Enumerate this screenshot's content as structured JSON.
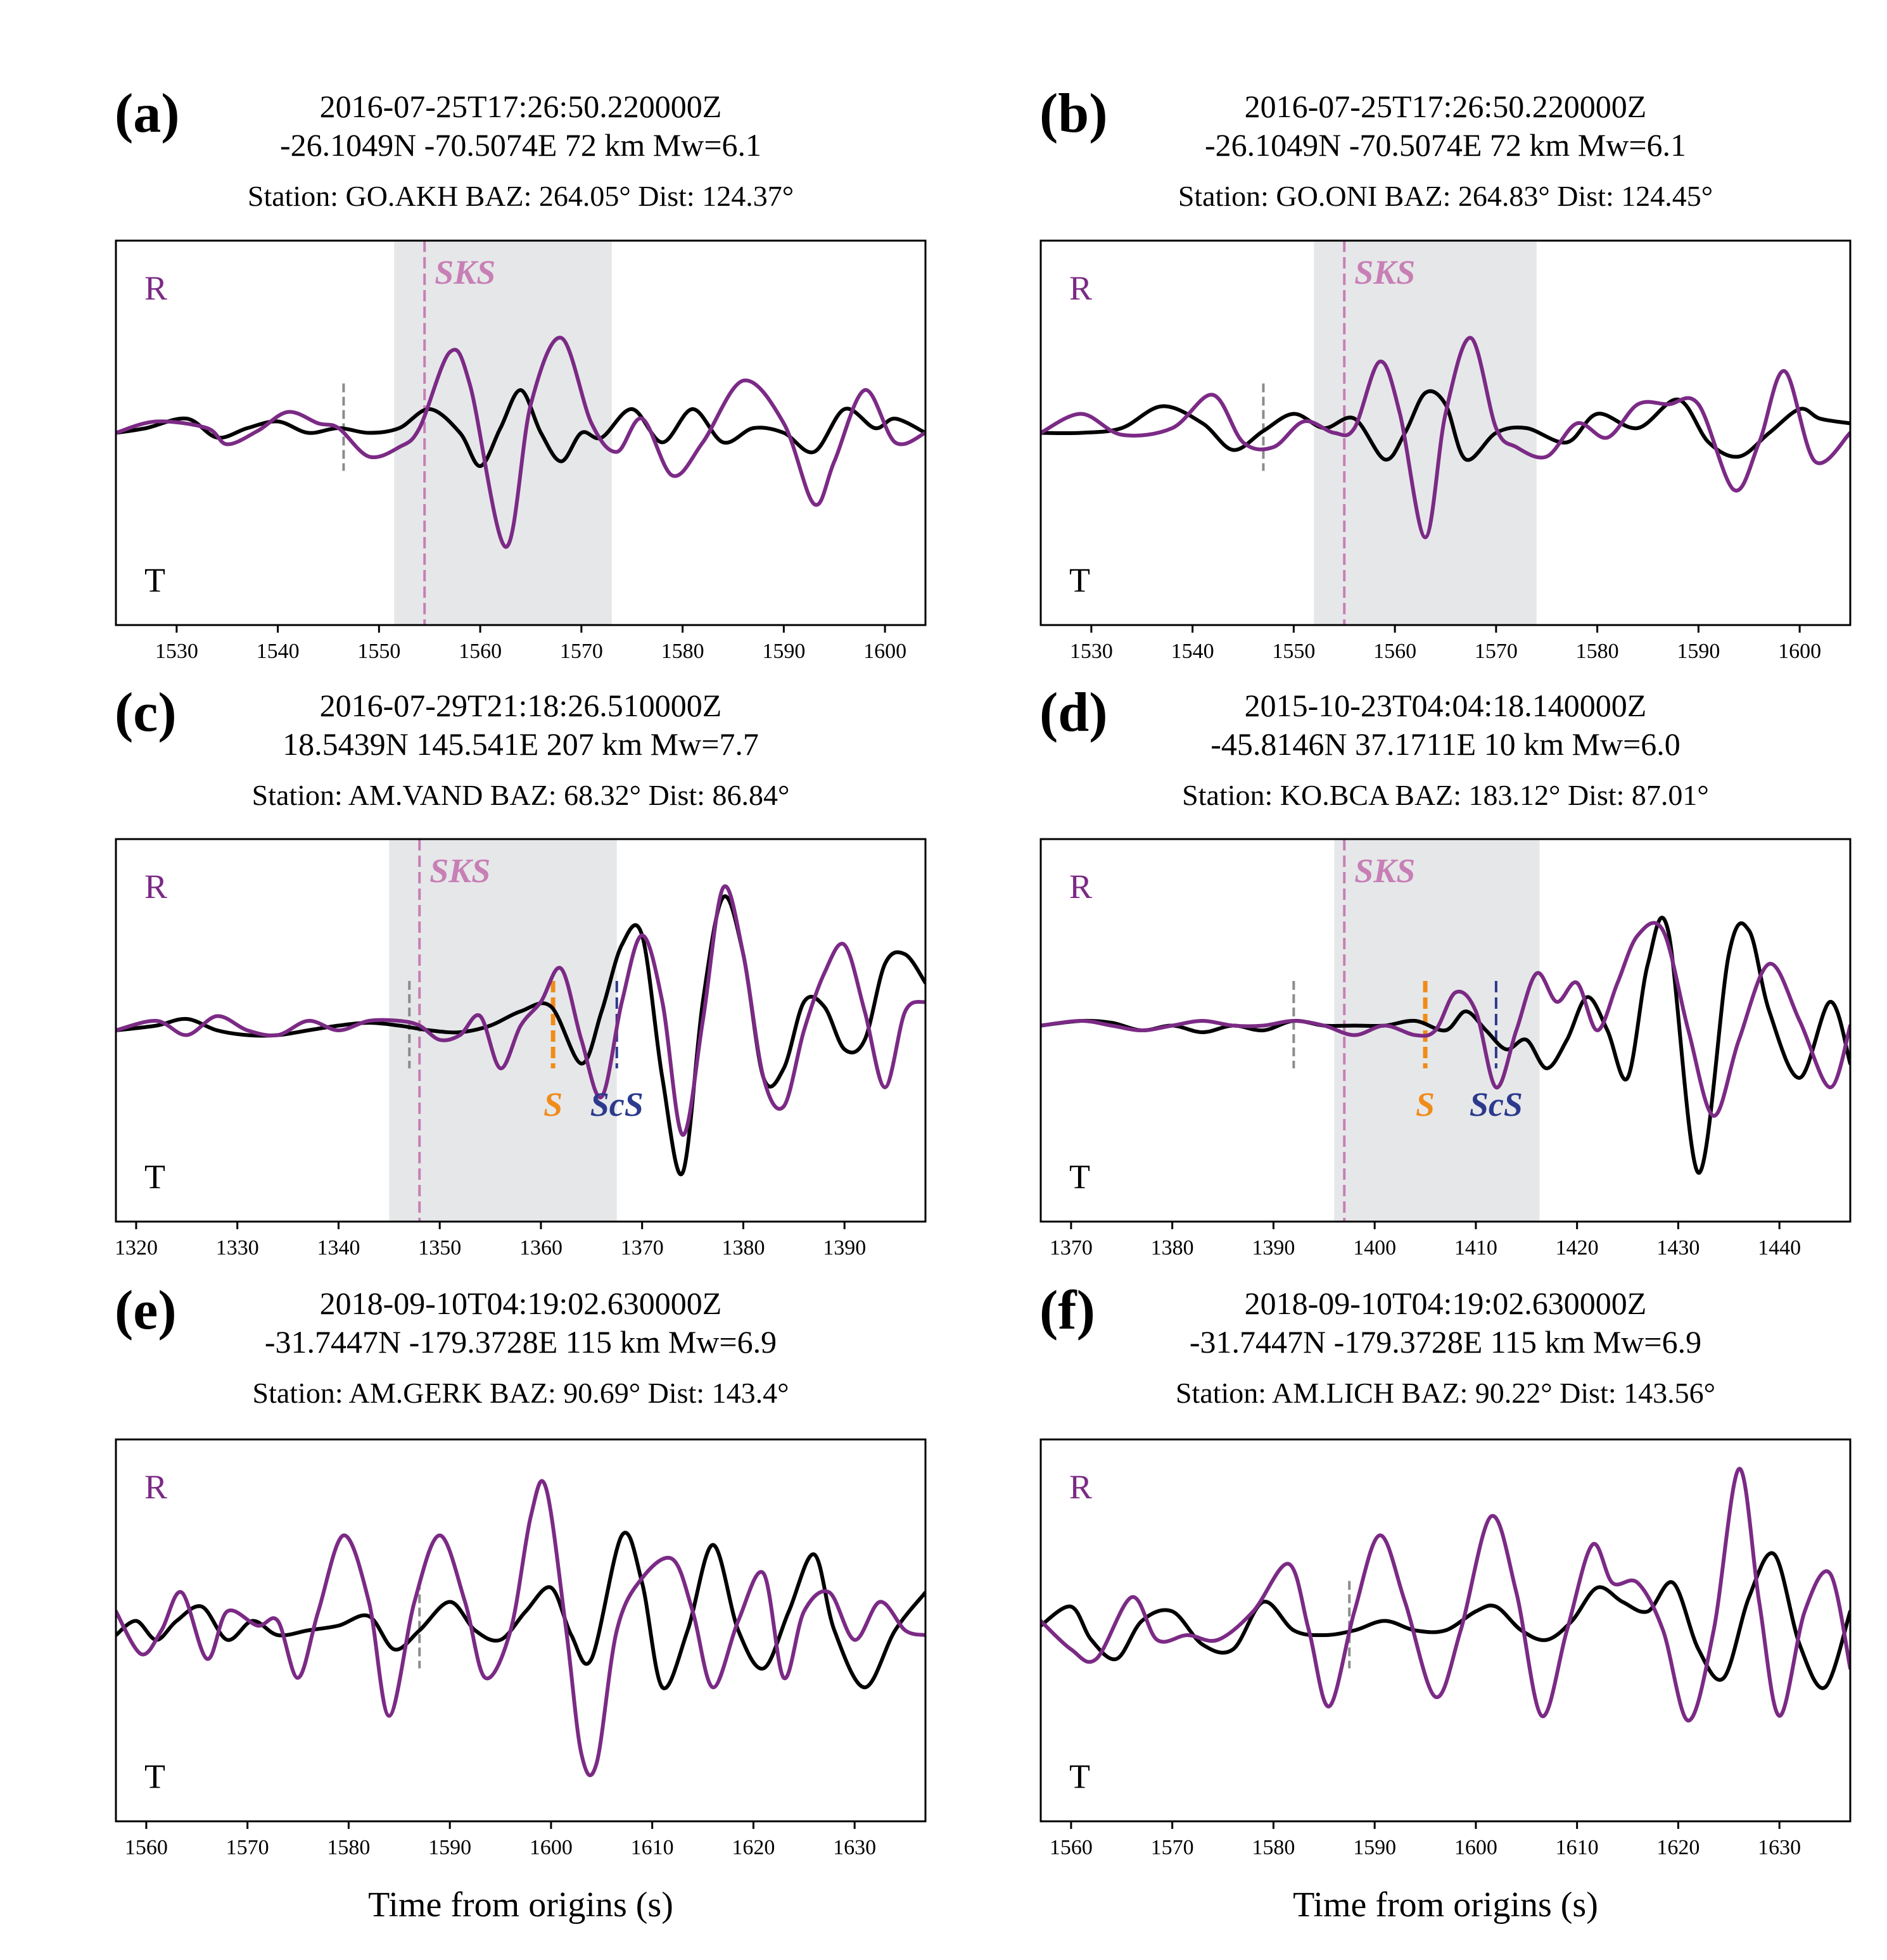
{
  "chart_data": [
    {
      "type": "line",
      "panel_label": "(a)",
      "title": [
        "2016-07-25T17:26:50.220000Z",
        "-26.1049N -70.5074E 72 km  Mw=6.1"
      ],
      "subtitle": "Station: GO.AKH  BAZ: 264.05° Dist: 124.37°",
      "xlim": [
        1524,
        1604
      ],
      "xticks": [
        1530,
        1540,
        1550,
        1560,
        1570,
        1580,
        1590,
        1600
      ],
      "xlabel": "",
      "components": {
        "r": "R",
        "t": "T"
      },
      "window": [
        1551.5,
        1573
      ],
      "gray_marker": 1546.5,
      "phases": [
        {
          "label": "SKS",
          "t": 1554.5,
          "color": "#c77fb5"
        }
      ],
      "series": [
        {
          "name": "R",
          "color": "#7b2a85",
          "x": [
            1524,
            1528,
            1533,
            1535,
            1538,
            1541,
            1544,
            1546,
            1549,
            1552,
            1554,
            1557,
            1559,
            1562.5,
            1565,
            1568,
            1571,
            1573.5,
            1576,
            1579,
            1582,
            1586,
            1590,
            1593,
            1595,
            1598,
            1601,
            1604
          ],
          "values": [
            0,
            0.12,
            0.05,
            -0.12,
            0.02,
            0.22,
            0.1,
            0.05,
            -0.25,
            -0.15,
            0.05,
            0.85,
            0.5,
            -1.2,
            0.3,
            1.0,
            0.1,
            -0.2,
            0.15,
            -0.45,
            -0.1,
            0.55,
            0.1,
            -0.75,
            -0.3,
            0.45,
            -0.1,
            0.0
          ]
        },
        {
          "name": "T",
          "color": "#000000",
          "x": [
            1524,
            1527,
            1531,
            1534,
            1537,
            1540,
            1543,
            1546,
            1549,
            1552,
            1555,
            1558,
            1560,
            1562,
            1564,
            1566,
            1568,
            1570,
            1572,
            1575,
            1578,
            1581,
            1584,
            1587,
            1590,
            1593,
            1596,
            1599,
            1601,
            1604
          ],
          "values": [
            0,
            0.05,
            0.15,
            -0.05,
            0.05,
            0.12,
            0.0,
            0.05,
            0.0,
            0.05,
            0.25,
            0.0,
            -0.35,
            0.05,
            0.45,
            0.0,
            -0.3,
            0.0,
            -0.05,
            0.25,
            -0.1,
            0.25,
            -0.1,
            0.05,
            0.0,
            -0.2,
            0.25,
            0.05,
            0.15,
            0.0
          ]
        }
      ]
    },
    {
      "type": "line",
      "panel_label": "(b)",
      "title": [
        "2016-07-25T17:26:50.220000Z",
        "-26.1049N -70.5074E 72 km  Mw=6.1"
      ],
      "subtitle": "Station: GO.ONI  BAZ: 264.83° Dist: 124.45°",
      "xlim": [
        1525,
        1605
      ],
      "xticks": [
        1530,
        1540,
        1550,
        1560,
        1570,
        1580,
        1590,
        1600
      ],
      "xlabel": "",
      "components": {
        "r": "R",
        "t": "T"
      },
      "window": [
        1552,
        1574
      ],
      "gray_marker": 1547,
      "phases": [
        {
          "label": "SKS",
          "t": 1555,
          "color": "#c77fb5"
        }
      ],
      "series": [
        {
          "name": "R",
          "color": "#7b2a85",
          "x": [
            1525,
            1529,
            1533,
            1538,
            1542,
            1545,
            1548,
            1551,
            1554,
            1556,
            1558.5,
            1560.5,
            1563,
            1565,
            1567.5,
            1570,
            1572,
            1575,
            1578,
            1581,
            1584,
            1587,
            1590,
            1593.5,
            1596,
            1598.5,
            1601.5,
            1605
          ],
          "values": [
            0,
            0.2,
            -0.02,
            0.05,
            0.4,
            -0.1,
            -0.15,
            0.12,
            0.0,
            0.05,
            0.75,
            0.2,
            -1.1,
            0.2,
            1.0,
            0.05,
            -0.15,
            -0.25,
            0.1,
            -0.05,
            0.3,
            0.3,
            0.3,
            -0.6,
            -0.1,
            0.65,
            -0.3,
            0.0
          ]
        },
        {
          "name": "T",
          "color": "#000000",
          "x": [
            1525,
            1529,
            1533,
            1537,
            1541,
            1544,
            1547,
            1550,
            1553,
            1556,
            1559,
            1561,
            1563,
            1565,
            1567,
            1570,
            1573,
            1577,
            1580,
            1584,
            1588,
            1591,
            1594,
            1597,
            1600,
            1602,
            1605
          ],
          "values": [
            0,
            0.0,
            0.05,
            0.28,
            0.1,
            -0.18,
            0.02,
            0.2,
            0.05,
            0.15,
            -0.28,
            0.0,
            0.42,
            0.3,
            -0.28,
            0.0,
            0.05,
            -0.1,
            0.2,
            0.05,
            0.35,
            -0.1,
            -0.25,
            0.0,
            0.25,
            0.15,
            0.1
          ]
        }
      ]
    },
    {
      "type": "line",
      "panel_label": "(c)",
      "title": [
        "2016-07-29T21:18:26.510000Z",
        "18.5439N 145.541E 207 km  Mw=7.7"
      ],
      "subtitle": "Station: AM.VAND  BAZ: 68.32° Dist: 86.84°",
      "xlim": [
        1318,
        1398
      ],
      "xticks": [
        1320,
        1330,
        1340,
        1350,
        1360,
        1370,
        1380,
        1390
      ],
      "xlabel": "",
      "components": {
        "r": "R",
        "t": "T"
      },
      "window": [
        1345,
        1367.5
      ],
      "gray_marker": 1347,
      "phases": [
        {
          "label": "SKS",
          "t": 1348,
          "color": "#c77fb5"
        },
        {
          "label": "S",
          "t": 1361.2,
          "color": "#f08c1a"
        },
        {
          "label": "ScS",
          "t": 1367.5,
          "color": "#2b3a8c"
        }
      ],
      "series": [
        {
          "name": "R",
          "color": "#7b2a85",
          "x": [
            1318,
            1322,
            1325,
            1328,
            1331,
            1334,
            1337,
            1340,
            1343,
            1346,
            1348,
            1350,
            1352,
            1354,
            1356,
            1358,
            1360,
            1362,
            1364,
            1366,
            1368,
            1370,
            1372,
            1374,
            1376,
            1378,
            1380,
            1382,
            1384,
            1386,
            1388,
            1390,
            1392,
            1394,
            1396,
            1398
          ],
          "values": [
            0,
            0.1,
            -0.05,
            0.15,
            0.0,
            -0.05,
            0.1,
            0.0,
            0.1,
            0.1,
            0.05,
            -0.1,
            -0.05,
            0.15,
            -0.4,
            0.05,
            0.3,
            0.65,
            -0.1,
            -0.7,
            0.3,
            1.0,
            0.3,
            -1.1,
            0.1,
            1.5,
            0.8,
            -0.5,
            -0.8,
            0.0,
            0.6,
            0.9,
            0.2,
            -0.6,
            0.2,
            0.3
          ]
        },
        {
          "name": "T",
          "color": "#000000",
          "x": [
            1318,
            1322,
            1325,
            1328,
            1331,
            1334,
            1337,
            1340,
            1343,
            1346,
            1349,
            1352,
            1355,
            1358,
            1361,
            1364,
            1366,
            1368,
            1370,
            1372,
            1374,
            1376,
            1378,
            1380,
            1382,
            1384,
            1386,
            1388,
            1390,
            1392,
            1394,
            1396,
            1398
          ],
          "values": [
            0,
            0.05,
            0.12,
            0.0,
            -0.05,
            -0.05,
            0.0,
            0.05,
            0.08,
            0.05,
            0.0,
            -0.02,
            0.05,
            0.2,
            0.25,
            -0.35,
            0.2,
            0.9,
            1.0,
            -0.5,
            -1.5,
            0.3,
            1.4,
            0.8,
            -0.5,
            -0.4,
            0.3,
            0.25,
            -0.2,
            -0.1,
            0.7,
            0.8,
            0.5
          ]
        }
      ]
    },
    {
      "type": "line",
      "panel_label": "(d)",
      "title": [
        "2015-10-23T04:04:18.140000Z",
        "-45.8146N 37.1711E 10 km  Mw=6.0"
      ],
      "subtitle": "Station: KO.BCA  BAZ: 183.12° Dist: 87.01°",
      "xlim": [
        1367,
        1447
      ],
      "xticks": [
        1370,
        1380,
        1390,
        1400,
        1410,
        1420,
        1430,
        1440
      ],
      "xlabel": "",
      "components": {
        "r": "R",
        "t": "T"
      },
      "window": [
        1396,
        1416.3
      ],
      "gray_marker": 1392,
      "phases": [
        {
          "label": "SKS",
          "t": 1397,
          "color": "#c77fb5"
        },
        {
          "label": "S",
          "t": 1405,
          "color": "#f08c1a"
        },
        {
          "label": "ScS",
          "t": 1412,
          "color": "#2b3a8c"
        }
      ],
      "series": [
        {
          "name": "R",
          "color": "#7b2a85",
          "x": [
            1367,
            1371,
            1374,
            1377,
            1380,
            1383,
            1386,
            1389,
            1392,
            1395,
            1398,
            1401,
            1404,
            1406,
            1408,
            1410,
            1412,
            1414,
            1416,
            1418,
            1420,
            1422,
            1424,
            1426,
            1428.5,
            1431,
            1433.5,
            1436,
            1439,
            1442,
            1445,
            1447
          ],
          "values": [
            0.05,
            0.1,
            0.05,
            0.0,
            0.05,
            0.1,
            0.05,
            0.05,
            0.1,
            0.05,
            -0.05,
            0.05,
            -0.05,
            0.0,
            0.4,
            0.2,
            -0.6,
            0.0,
            0.6,
            0.3,
            0.5,
            0.0,
            0.5,
            1.0,
            1.05,
            0.0,
            -0.9,
            -0.1,
            0.7,
            0.1,
            -0.6,
            0.05
          ]
        },
        {
          "name": "T",
          "color": "#000000",
          "x": [
            1367,
            1371,
            1374,
            1377,
            1380,
            1383,
            1386,
            1389,
            1392,
            1395,
            1398,
            1401,
            1404,
            1407,
            1409,
            1411,
            1413,
            1415,
            1417,
            1419,
            1421,
            1423,
            1425,
            1427,
            1429,
            1432,
            1435,
            1437,
            1439,
            1442,
            1445,
            1447
          ],
          "values": [
            0.05,
            0.1,
            0.08,
            0.0,
            0.05,
            -0.02,
            0.05,
            0.0,
            0.1,
            0.05,
            0.05,
            0.05,
            0.1,
            0.0,
            0.2,
            0.0,
            -0.2,
            -0.1,
            -0.4,
            -0.1,
            0.35,
            0.0,
            -0.5,
            0.7,
            1.05,
            -1.5,
            0.8,
            1.05,
            0.2,
            -0.5,
            0.3,
            -0.35
          ]
        }
      ]
    },
    {
      "type": "line",
      "panel_label": "(e)",
      "title": [
        "2018-09-10T04:19:02.630000Z",
        "-31.7447N -179.3728E 115 km  Mw=6.9"
      ],
      "subtitle": "Station: AM.GERK  BAZ: 90.69° Dist: 143.4°",
      "xlim": [
        1557,
        1637
      ],
      "xticks": [
        1560,
        1570,
        1580,
        1590,
        1600,
        1610,
        1620,
        1630
      ],
      "xlabel": "Time from origins (s)",
      "components": {
        "r": "R",
        "t": "T"
      },
      "window": null,
      "gray_marker": 1587,
      "phases": [],
      "series": [
        {
          "name": "R",
          "color": "#7b2a85",
          "x": [
            1557,
            1559.5,
            1561.5,
            1563.5,
            1566,
            1568,
            1571,
            1573,
            1575,
            1577,
            1579.5,
            1582,
            1584,
            1586.5,
            1589,
            1591.5,
            1593.5,
            1596,
            1598,
            1599.5,
            1601.5,
            1603,
            1604.5,
            1606.5,
            1609,
            1612,
            1614,
            1616,
            1618.5,
            1621,
            1623,
            1625,
            1627.5,
            1630,
            1632.5,
            1635,
            1637
          ],
          "values": [
            0.2,
            -0.25,
            0.0,
            0.4,
            -0.3,
            0.2,
            0.05,
            0.1,
            -0.5,
            0.2,
            1.0,
            0.3,
            -0.9,
            0.3,
            1.0,
            0.3,
            -0.5,
            0.0,
            1.2,
            1.5,
            0.0,
            -1.3,
            -1.4,
            0.0,
            0.55,
            0.75,
            0.2,
            -0.6,
            0.1,
            0.6,
            -0.5,
            0.2,
            0.4,
            -0.1,
            0.3,
            0.0,
            -0.05
          ]
        },
        {
          "name": "T",
          "color": "#000000",
          "x": [
            1557,
            1559,
            1561,
            1563,
            1565.5,
            1568,
            1570.5,
            1573,
            1576,
            1579,
            1582,
            1584.5,
            1587,
            1590,
            1592.5,
            1595,
            1597.5,
            1600,
            1602,
            1604,
            1607,
            1609,
            1611,
            1613.5,
            1616,
            1618.5,
            1621,
            1623.5,
            1626,
            1628,
            1631,
            1634,
            1637
          ],
          "values": [
            -0.05,
            0.1,
            -0.1,
            0.1,
            0.25,
            -0.1,
            0.1,
            -0.05,
            0.0,
            0.05,
            0.15,
            -0.2,
            0.0,
            0.3,
            0.0,
            -0.1,
            0.2,
            0.45,
            -0.05,
            -0.3,
            1.0,
            0.5,
            -0.6,
            0.0,
            0.9,
            0.0,
            -0.4,
            0.2,
            0.8,
            0.0,
            -0.6,
            0.0,
            0.4
          ]
        }
      ]
    },
    {
      "type": "line",
      "panel_label": "(f)",
      "title": [
        "2018-09-10T04:19:02.630000Z",
        "-31.7447N -179.3728E 115 km  Mw=6.9"
      ],
      "subtitle": "Station: AM.LICH  BAZ: 90.22° Dist: 143.56°",
      "xlim": [
        1557,
        1637
      ],
      "xticks": [
        1560,
        1570,
        1580,
        1590,
        1600,
        1610,
        1620,
        1630
      ],
      "xlabel": "Time from origins (s)",
      "components": {
        "r": "R",
        "t": "T"
      },
      "window": null,
      "gray_marker": 1587.5,
      "phases": [],
      "series": [
        {
          "name": "R",
          "color": "#7b2a85",
          "x": [
            1557,
            1560,
            1562.5,
            1566,
            1568.5,
            1571.5,
            1574.5,
            1578,
            1581.5,
            1583.5,
            1585.5,
            1588,
            1590.5,
            1593,
            1596,
            1598.5,
            1601.5,
            1604,
            1606.5,
            1609,
            1611.5,
            1613.5,
            1616,
            1618.5,
            1621,
            1623.5,
            1626,
            1628,
            1630,
            1632.5,
            1635,
            1637
          ],
          "values": [
            0.1,
            -0.2,
            -0.3,
            0.35,
            -0.1,
            -0.05,
            -0.1,
            0.2,
            0.7,
            0.0,
            -0.8,
            0.2,
            1.0,
            0.3,
            -0.7,
            0.0,
            1.2,
            0.4,
            -0.9,
            0.0,
            0.9,
            0.5,
            0.5,
            0.0,
            -0.95,
            0.0,
            1.7,
            0.3,
            -0.9,
            0.2,
            0.6,
            -0.4
          ]
        },
        {
          "name": "T",
          "color": "#000000",
          "x": [
            1557,
            1560,
            1562,
            1564.5,
            1567,
            1570,
            1573,
            1576,
            1579,
            1582,
            1585,
            1588,
            1591,
            1594,
            1597,
            1600,
            1602,
            1604.5,
            1607,
            1609.5,
            1612,
            1614.5,
            1617,
            1619.5,
            1622,
            1624.5,
            1627,
            1629.5,
            1632,
            1634.5,
            1637
          ],
          "values": [
            0.05,
            0.25,
            -0.1,
            -0.3,
            0.1,
            0.2,
            -0.15,
            -0.2,
            0.3,
            0.0,
            -0.05,
            0.0,
            0.1,
            0.0,
            0.0,
            0.2,
            0.25,
            0.0,
            -0.1,
            0.1,
            0.45,
            0.3,
            0.2,
            0.5,
            -0.2,
            -0.5,
            0.35,
            0.8,
            -0.15,
            -0.6,
            0.2
          ]
        }
      ]
    }
  ]
}
